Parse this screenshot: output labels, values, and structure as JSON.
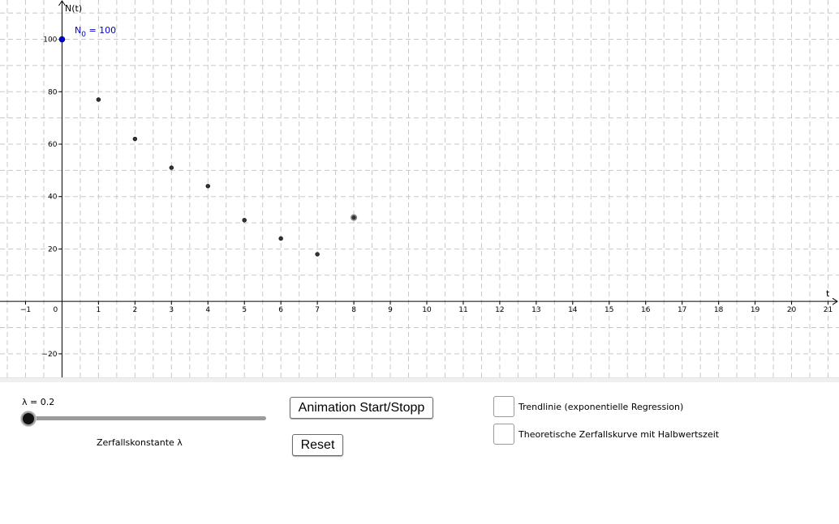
{
  "graph": {
    "axis_y_label": "N(t)",
    "axis_x_label": "t",
    "n0_label": {
      "prefix": "N",
      "sub": "0",
      "suffix": " = 100"
    },
    "colors": {
      "grid": "#c8c8c8",
      "axis": "#000000",
      "point": "#333333",
      "n0_point": "#0000cc"
    }
  },
  "chart_data": {
    "type": "scatter",
    "x_ticks": [
      -1,
      0,
      1,
      2,
      3,
      4,
      5,
      6,
      7,
      8,
      9,
      10,
      11,
      12,
      13,
      14,
      15,
      16,
      17,
      18,
      19,
      20,
      21
    ],
    "y_ticks": [
      -20,
      20,
      40,
      60,
      80,
      100
    ],
    "n0_point": {
      "x": 0,
      "y": 100
    },
    "points": [
      {
        "x": 1,
        "y": 77
      },
      {
        "x": 2,
        "y": 62
      },
      {
        "x": 3,
        "y": 51
      },
      {
        "x": 4,
        "y": 44
      },
      {
        "x": 5,
        "y": 31
      },
      {
        "x": 6,
        "y": 24
      },
      {
        "x": 7,
        "y": 18
      },
      {
        "x": 8,
        "y": 32
      }
    ],
    "xlim": [
      -1.7,
      21.3
    ],
    "ylim": [
      -29,
      115
    ],
    "grid": true
  },
  "controls": {
    "slider": {
      "label": "λ = 0.2",
      "caption": "Zerfallskonstante λ",
      "value": 0.2,
      "min": 0.2,
      "max": 5
    },
    "animation_button": "Animation Start/Stopp",
    "reset_button": "Reset",
    "checkbox_trend": {
      "label": "Trendlinie (exponentielle Regression)",
      "checked": false
    },
    "checkbox_theory": {
      "label": "Theoretische Zerfallskurve mit Halbwertszeit",
      "checked": false
    }
  }
}
